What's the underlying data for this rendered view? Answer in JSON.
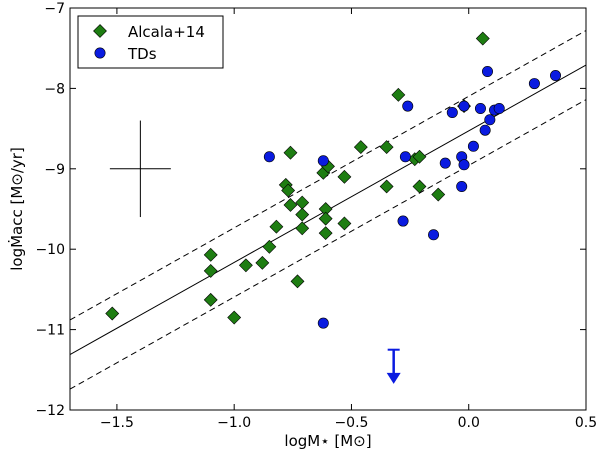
{
  "chart_data": {
    "type": "scatter",
    "title": "",
    "xlabel": "logM⋆ [M⊙]",
    "ylabel": "logṀacc [M⊙/yr]",
    "xlim": [
      -1.7,
      0.5
    ],
    "ylim": [
      -12,
      -7
    ],
    "xticks": [
      -1.5,
      -1.0,
      -0.5,
      0.0,
      0.5
    ],
    "xtick_labels": [
      "−1.5",
      "−1.0",
      "−0.5",
      "0.0",
      "0.5"
    ],
    "yticks": [
      -12,
      -11,
      -10,
      -9,
      -8,
      -7
    ],
    "ytick_labels": [
      "−12",
      "−11",
      "−10",
      "−9",
      "−8",
      "−7"
    ],
    "legend_position": "top-left",
    "series": [
      {
        "name": "Alcala+14",
        "marker": "diamond",
        "color": "#1e7d12",
        "points": [
          [
            -1.52,
            -10.8
          ],
          [
            -1.1,
            -10.07
          ],
          [
            -1.1,
            -10.27
          ],
          [
            -1.1,
            -10.63
          ],
          [
            -1.0,
            -10.85
          ],
          [
            -0.95,
            -10.2
          ],
          [
            -0.88,
            -10.17
          ],
          [
            -0.85,
            -9.97
          ],
          [
            -0.82,
            -9.72
          ],
          [
            -0.78,
            -9.2
          ],
          [
            -0.77,
            -9.27
          ],
          [
            -0.76,
            -8.8
          ],
          [
            -0.76,
            -9.45
          ],
          [
            -0.73,
            -10.4
          ],
          [
            -0.71,
            -9.42
          ],
          [
            -0.71,
            -9.57
          ],
          [
            -0.71,
            -9.74
          ],
          [
            -0.62,
            -9.05
          ],
          [
            -0.61,
            -9.5
          ],
          [
            -0.61,
            -9.62
          ],
          [
            -0.61,
            -9.8
          ],
          [
            -0.6,
            -8.97
          ],
          [
            -0.53,
            -9.1
          ],
          [
            -0.53,
            -9.68
          ],
          [
            -0.46,
            -8.73
          ],
          [
            -0.35,
            -8.73
          ],
          [
            -0.35,
            -9.22
          ],
          [
            -0.3,
            -8.08
          ],
          [
            -0.23,
            -8.88
          ],
          [
            -0.21,
            -8.85
          ],
          [
            -0.21,
            -9.22
          ],
          [
            -0.13,
            -9.32
          ],
          [
            -0.02,
            -8.22
          ],
          [
            0.06,
            -7.38
          ]
        ]
      },
      {
        "name": "TDs",
        "marker": "circle",
        "color": "#0a1be0",
        "points": [
          [
            -0.85,
            -8.85
          ],
          [
            -0.62,
            -8.9
          ],
          [
            -0.62,
            -10.92
          ],
          [
            -0.27,
            -8.85
          ],
          [
            -0.28,
            -9.65
          ],
          [
            -0.26,
            -8.22
          ],
          [
            -0.15,
            -9.82
          ],
          [
            -0.1,
            -8.93
          ],
          [
            -0.07,
            -8.3
          ],
          [
            -0.03,
            -8.85
          ],
          [
            -0.03,
            -9.22
          ],
          [
            -0.02,
            -8.22
          ],
          [
            -0.02,
            -8.95
          ],
          [
            0.02,
            -8.72
          ],
          [
            0.05,
            -8.25
          ],
          [
            0.07,
            -8.52
          ],
          [
            0.08,
            -7.79
          ],
          [
            0.09,
            -8.39
          ],
          [
            0.11,
            -8.27
          ],
          [
            0.13,
            -8.25
          ],
          [
            0.28,
            -7.94
          ],
          [
            0.37,
            -7.84
          ]
        ]
      }
    ],
    "upper_limit": {
      "series": "TDs",
      "x": -0.32,
      "y": -11.25,
      "y_tip": -11.65,
      "color": "#0a1be0"
    },
    "error_cross": {
      "x": -1.4,
      "y": -9.0,
      "x_err": 0.13,
      "y_err": 0.6
    },
    "fit_lines": [
      {
        "style": "solid",
        "x": [
          -1.7,
          0.5
        ],
        "y": [
          -11.31,
          -7.71
        ]
      },
      {
        "style": "dashed",
        "x": [
          -1.7,
          0.5
        ],
        "y": [
          -10.88,
          -7.28
        ]
      },
      {
        "style": "dashed",
        "x": [
          -1.7,
          0.5
        ],
        "y": [
          -11.74,
          -8.14
        ]
      }
    ]
  }
}
